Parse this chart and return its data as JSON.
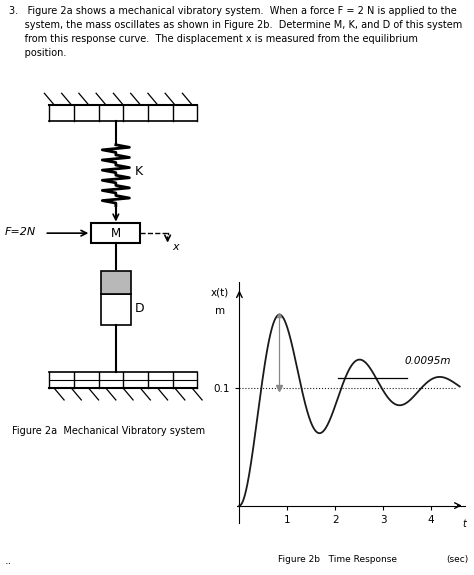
{
  "fig2a_label": "Figure 2a  Mechanical Vibratory system",
  "fig2b_label": "Figure 2b   Time Response",
  "time_unit": "(sec)",
  "ylabel_top": "x(t)",
  "ylabel_bot": "m",
  "ytick_val": "0.1",
  "steady_state_label": "0.0095m",
  "bg_color": "#ffffff",
  "text_color": "#000000",
  "wall_color": "#000000",
  "curve_color": "#1a1a1a",
  "spring_color": "#000000",
  "header_text_line1": "3.   Figure 2a shows a mechanical vibratory system.  When a force F = 2 N is applied to the",
  "header_text_line2": "     system, the mass oscillates as shown in Figure 2b.  Determine M, K, and D of this system",
  "header_text_line3": "     from this response curve.  The displacement x is measured from the equilibrium",
  "header_text_line4": "     position."
}
